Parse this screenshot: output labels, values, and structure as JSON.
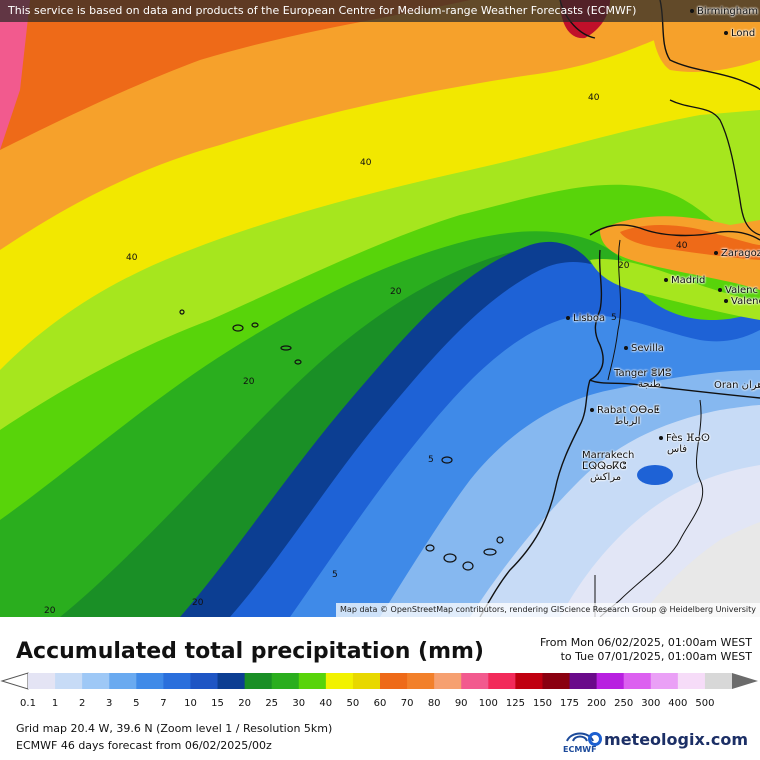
{
  "map": {
    "notice": "This service is based on data and products of the European Centre for Medium-range Weather Forecasts (ECMWF)",
    "attribution": "Map data © OpenStreetMap contributors, rendering GIScience Research Group @ Heidelberg University",
    "cities": [
      "Birmingham",
      "Lond",
      "Zaragoza",
      "Madrid",
      "Valenc",
      "Valenc",
      "Lisboa",
      "Sevilla",
      "Tanger ⴻⵍⵓ",
      "طنجة",
      "Oran وهران",
      "Rabat ⵔⴱⴰⵟ",
      "الرباط",
      "Fès ⴼⴰⵙ",
      "فاس",
      "Marrakech",
      "ⵎⵕⵕⴰⴽⵛ",
      "مراكش"
    ],
    "contour_labels": [
      "40",
      "40",
      "40",
      "40",
      "20",
      "20",
      "20",
      "20",
      "5",
      "5",
      "5",
      "20"
    ],
    "colors": {
      "pink": "#f25a8e",
      "red": "#f2383a",
      "orange": "#ee6a18",
      "lightorange": "#f6a12b",
      "yellow": "#f2e800",
      "lightyellow": "#f7f55a",
      "lime": "#a6e61e",
      "green1": "#58d40a",
      "green2": "#2aae1e",
      "darkgreen": "#1a8f26",
      "navy": "#0c3e92",
      "blue": "#1e62d6",
      "midblue": "#3f8ae8",
      "lightblue": "#86b8f0",
      "paleblue": "#c7dbf6",
      "lavender": "#e2e6f6",
      "land_dry": "#e8e8e8"
    }
  },
  "legend": {
    "title": "Accumulated total precipitation (mm)",
    "period_from": "From Mon 06/02/2025, 01:00am WEST",
    "period_to": "to Tue 07/01/2025, 01:00am WEST",
    "ticks": [
      "0.1",
      "1",
      "2",
      "3",
      "5",
      "7",
      "10",
      "15",
      "20",
      "25",
      "30",
      "40",
      "50",
      "60",
      "70",
      "80",
      "90",
      "100",
      "125",
      "150",
      "175",
      "200",
      "250",
      "300",
      "400",
      "500"
    ],
    "colors": [
      "#e4e4f4",
      "#c7dbf6",
      "#9ec8f6",
      "#6aaaf0",
      "#3f8ae8",
      "#2a6fdc",
      "#1e55c4",
      "#0c3e92",
      "#1a8f26",
      "#2aae1e",
      "#58d40a",
      "#f2f200",
      "#e8d800",
      "#ee6a18",
      "#f2802a",
      "#f6a070",
      "#f25a8e",
      "#f22a5a",
      "#c00010",
      "#8a0010",
      "#6a0a8a",
      "#b820e0",
      "#dc60f0",
      "#eaa0f6",
      "#f6dcf8",
      "#d8d8d8"
    ],
    "grid_info": "Grid map 20.4 W, 39.6 N (Zoom level 1 / Resolution 5km)",
    "forecast_info": "ECMWF 46 days forecast from  06/02/2025/00z",
    "ecmwf_label": "ECMWF",
    "brand": "meteologix.com"
  }
}
